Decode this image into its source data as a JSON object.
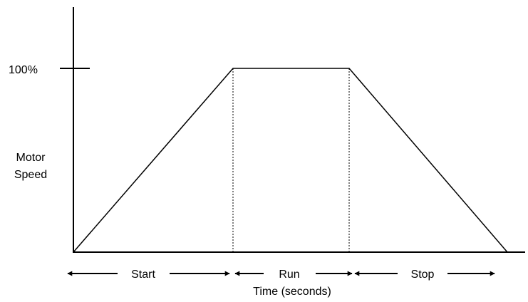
{
  "diagram": {
    "y_axis": {
      "tick_label": "100%",
      "label_line1": "Motor",
      "label_line2": "Speed"
    },
    "x_axis": {
      "label": "Time (seconds)"
    },
    "phases": [
      {
        "id": "start",
        "label": "Start"
      },
      {
        "id": "run",
        "label": "Run"
      },
      {
        "id": "stop",
        "label": "Stop"
      }
    ]
  }
}
